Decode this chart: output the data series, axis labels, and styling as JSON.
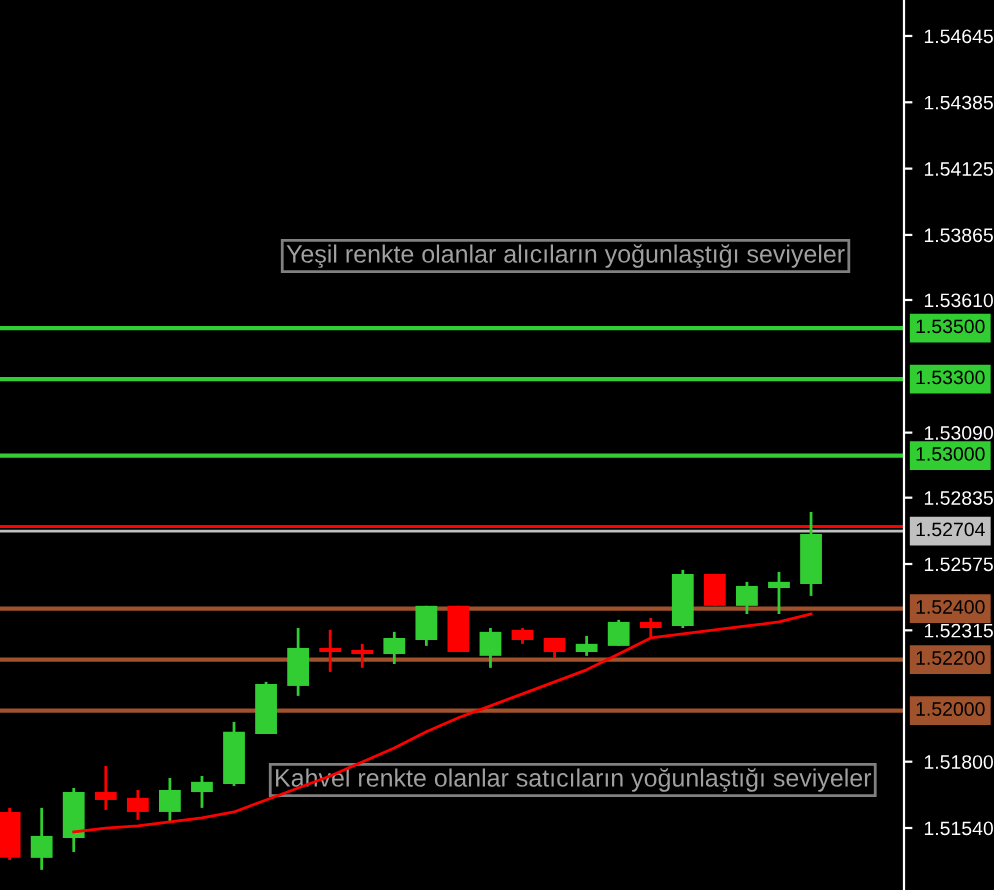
{
  "chart_data": {
    "type": "candlestick",
    "categories": [
      null,
      null,
      null,
      null,
      null,
      null,
      null,
      null,
      null,
      null,
      null,
      null,
      null,
      null,
      null,
      null,
      null,
      null,
      null,
      null,
      null,
      null,
      null,
      null,
      null,
      null
    ],
    "ohlc": [
      [
        1.51603,
        1.51619,
        1.51415,
        1.51423
      ],
      [
        1.51423,
        1.51619,
        1.51376,
        1.51509
      ],
      [
        1.51501,
        1.51697,
        1.51446,
        1.51681
      ],
      [
        1.51681,
        1.51783,
        1.51611,
        1.5165
      ],
      [
        1.51658,
        1.51689,
        1.51572,
        1.51603
      ],
      [
        1.51603,
        1.51736,
        1.51564,
        1.51689
      ],
      [
        1.51681,
        1.51744,
        1.51619,
        1.51721
      ],
      [
        1.51713,
        1.51956,
        1.51705,
        1.51917
      ],
      [
        1.51909,
        1.52113,
        1.51909,
        1.52105
      ],
      [
        1.52097,
        1.52324,
        1.52058,
        1.52246
      ],
      [
        1.52246,
        1.52317,
        1.52152,
        1.5223
      ],
      [
        1.52238,
        1.52262,
        1.52168,
        1.52222
      ],
      [
        1.52222,
        1.52309,
        1.52183,
        1.52285
      ],
      [
        1.52277,
        1.52411,
        1.52254,
        1.52411
      ],
      [
        1.52411,
        1.52411,
        1.5223,
        1.5223
      ],
      [
        1.52215,
        1.52324,
        1.52168,
        1.52309
      ],
      [
        1.52317,
        1.52324,
        1.52262,
        1.52277
      ],
      [
        1.52285,
        1.52285,
        1.52207,
        1.5223
      ],
      [
        1.5223,
        1.52293,
        1.52215,
        1.52262
      ],
      [
        1.52254,
        1.52356,
        1.52254,
        1.52348
      ],
      [
        1.52348,
        1.52364,
        1.52285,
        1.52324
      ],
      [
        1.52332,
        1.52552,
        1.52324,
        1.52536
      ],
      [
        1.52536,
        1.52536,
        1.52411,
        1.52411
      ],
      [
        1.52411,
        1.52505,
        1.52379,
        1.52489
      ],
      [
        1.52481,
        1.52544,
        1.52379,
        1.52505
      ],
      [
        1.52497,
        1.52779,
        1.5245,
        1.52693
      ]
    ],
    "colors": [
      "#ff0000",
      "#32cd32",
      "#32cd32",
      "#ff0000",
      "#ff0000",
      "#32cd32",
      "#32cd32",
      "#32cd32",
      "#32cd32",
      "#32cd32",
      "#ff0000",
      "#ff0000",
      "#32cd32",
      "#32cd32",
      "#ff0000",
      "#32cd32",
      "#ff0000",
      "#ff0000",
      "#32cd32",
      "#32cd32",
      "#ff0000",
      "#32cd32",
      "#ff0000",
      "#32cd32",
      "#32cd32",
      "#32cd32"
    ],
    "series": [
      {
        "type": "line",
        "color": "#ff0000",
        "values": [
          null,
          null,
          1.51525,
          1.5154,
          1.51548,
          1.51564,
          1.5158,
          1.51603,
          1.5165,
          1.51697,
          1.51744,
          1.51799,
          1.51854,
          1.51917,
          1.51972,
          1.52019,
          1.52066,
          1.52113,
          1.5216,
          1.52222,
          1.52285,
          1.52301,
          1.52317,
          1.52332,
          1.52348,
          1.52379
        ]
      }
    ],
    "ylim": [
      1.51297,
      1.54786
    ],
    "yticks": [
      1.54645,
      1.54385,
      1.54125,
      1.53865,
      {
        "value": 1.5361,
        "label": "1.53610"
      },
      {
        "value": 1.5309,
        "label": "1.53090"
      },
      1.52835,
      1.52575,
      1.52315,
      {
        "value": 1.518,
        "label": "1.51800"
      },
      {
        "value": 1.5154,
        "label": "1.51540"
      }
    ],
    "ref_lines": [
      {
        "axis": "y",
        "value": 1.535,
        "label": "1.53500",
        "color": "#32cd32"
      },
      {
        "axis": "y",
        "value": 1.533,
        "label": "1.53300",
        "color": "#32cd32"
      },
      {
        "axis": "y",
        "value": 1.53,
        "label": "1.53000",
        "color": "#32cd32"
      },
      {
        "axis": "y",
        "value": 1.524,
        "label": "1.52400",
        "color": "#a0522d"
      },
      {
        "axis": "y",
        "value": 1.522,
        "label": "1.52200",
        "color": "#a0522d"
      },
      {
        "axis": "y",
        "value": 1.52,
        "label": "1.52000",
        "color": "#a0522d"
      },
      {
        "axis": "y",
        "value": 1.52722,
        "color": "#ff0000"
      },
      {
        "axis": "y",
        "value": 1.52704,
        "label": "1.52704",
        "color": "#c0c0c0"
      }
    ],
    "annotations": [
      "Yeşil renkte olanlar alıcıların yoğunlaştığı seviyeler",
      "Kahvel renkte olanlar satıcıların yoğunlaştığı seviyeler"
    ],
    "grid": false,
    "tick_labels": "y"
  }
}
